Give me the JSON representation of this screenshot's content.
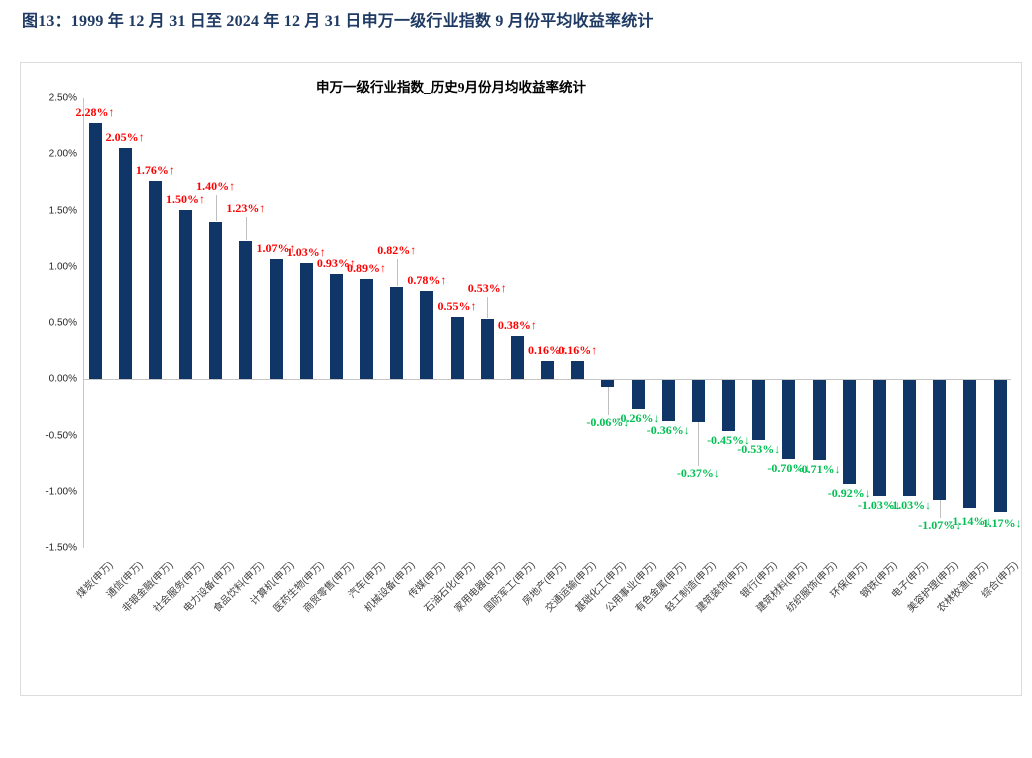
{
  "page": {
    "figure_title": "图13：1999 年 12 月 31 日至 2024 年 12 月 31 日申万一级行业指数 9 月份平均收益率统计"
  },
  "chart_data": {
    "type": "bar",
    "title": "申万一级行业指数_历史9月份月均收益率统计",
    "xlabel": "",
    "ylabel": "",
    "ylim": [
      -1.5,
      2.5
    ],
    "grid": false,
    "legend": "none",
    "bar_color": "#0F3666",
    "positive_label_color": "#FF0000",
    "negative_label_color": "#00C052",
    "yticks": [
      "2.50%",
      "2.00%",
      "1.50%",
      "1.00%",
      "0.50%",
      "0.00%",
      "-0.50%",
      "-1.00%",
      "-1.50%"
    ],
    "categories": [
      "煤炭(申万)",
      "通信(申万)",
      "非银金融(申万)",
      "社会服务(申万)",
      "电力设备(申万)",
      "食品饮料(申万)",
      "计算机(申万)",
      "医药生物(申万)",
      "商贸零售(申万)",
      "汽车(申万)",
      "机械设备(申万)",
      "传媒(申万)",
      "石油石化(申万)",
      "家用电器(申万)",
      "国防军工(申万)",
      "房地产(申万)",
      "交通运输(申万)",
      "基础化工(申万)",
      "公用事业(申万)",
      "有色金属(申万)",
      "轻工制造(申万)",
      "建筑装饰(申万)",
      "银行(申万)",
      "建筑材料(申万)",
      "纺织服饰(申万)",
      "环保(申万)",
      "钢铁(申万)",
      "电子(申万)",
      "美容护理(申万)",
      "农林牧渔(申万)",
      "综合(申万)"
    ],
    "values": [
      2.28,
      2.05,
      1.76,
      1.5,
      1.4,
      1.23,
      1.07,
      1.03,
      0.93,
      0.89,
      0.82,
      0.78,
      0.55,
      0.53,
      0.38,
      0.16,
      0.16,
      -0.06,
      -0.26,
      -0.36,
      -0.37,
      -0.45,
      -0.53,
      -0.7,
      -0.71,
      -0.92,
      -1.03,
      -1.03,
      -1.07,
      -1.14,
      -1.17
    ],
    "value_labels": [
      "2.28%↑",
      "2.05%↑",
      "1.76%↑",
      "1.50%↑",
      "1.40%↑",
      "1.23%↑",
      "1.07%↑",
      "1.03%↑",
      "0.93%↑",
      "0.89%↑",
      "0.82%↑",
      "0.78%↑",
      "0.55%↑",
      "0.53%↑",
      "0.38%↑",
      "0.16%↑",
      "0.16%↑",
      "-0.06%↓",
      "-0.26%↓",
      "-0.36%↓",
      "-0.37%↓",
      "-0.45%↓",
      "-0.53%↓",
      "-0.70%↓",
      "-0.71%↓",
      "-0.92%↓",
      "-1.03%↓",
      "-1.03%↓",
      "-1.07%↓",
      "-1.14%↓",
      "-1.17%↓"
    ]
  }
}
